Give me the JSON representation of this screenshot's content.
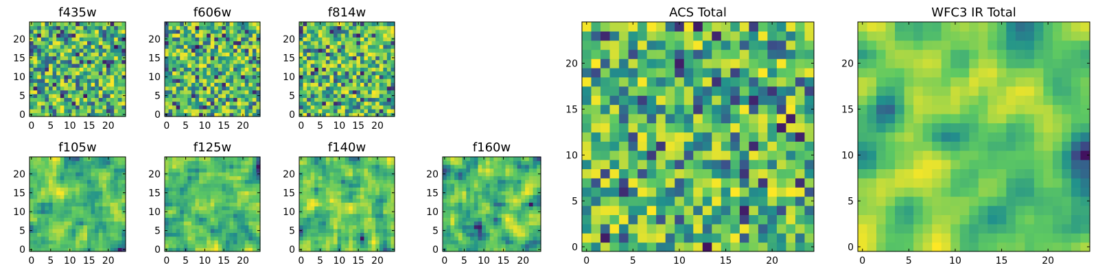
{
  "figure": {
    "panels_description": "Grid of heatmap panels (HST filter images, 25x25 pixel cutouts)"
  },
  "colormap": {
    "name": "viridis",
    "stops": [
      "#440154",
      "#3b528b",
      "#21918c",
      "#5ec962",
      "#fde725"
    ]
  },
  "chart_data": [
    {
      "type": "heatmap",
      "title": "f435w",
      "grid_size": 25,
      "xlim": [
        0,
        24
      ],
      "ylim": [
        0,
        24
      ],
      "xticks": [
        0,
        5,
        10,
        15,
        20
      ],
      "yticks": [
        0,
        5,
        10,
        15,
        20
      ],
      "texture": "noise",
      "smooth": 0,
      "seed": 11
    },
    {
      "type": "heatmap",
      "title": "f606w",
      "grid_size": 25,
      "xlim": [
        0,
        24
      ],
      "ylim": [
        0,
        24
      ],
      "xticks": [
        0,
        5,
        10,
        15,
        20
      ],
      "yticks": [
        0,
        5,
        10,
        15,
        20
      ],
      "texture": "noise",
      "smooth": 0,
      "seed": 23
    },
    {
      "type": "heatmap",
      "title": "f814w",
      "grid_size": 25,
      "xlim": [
        0,
        24
      ],
      "ylim": [
        0,
        24
      ],
      "xticks": [
        0,
        5,
        10,
        15,
        20
      ],
      "yticks": [
        0,
        5,
        10,
        15,
        20
      ],
      "texture": "noise",
      "smooth": 0,
      "seed": 37
    },
    {
      "type": "heatmap",
      "title": "f105w",
      "grid_size": 25,
      "xlim": [
        0,
        24
      ],
      "ylim": [
        0,
        24
      ],
      "xticks": [
        0,
        5,
        10,
        15,
        20
      ],
      "yticks": [
        0,
        5,
        10,
        15,
        20
      ],
      "texture": "smooth",
      "smooth": 1,
      "seed": 41
    },
    {
      "type": "heatmap",
      "title": "f125w",
      "grid_size": 25,
      "xlim": [
        0,
        24
      ],
      "ylim": [
        0,
        24
      ],
      "xticks": [
        0,
        5,
        10,
        15,
        20
      ],
      "yticks": [
        0,
        5,
        10,
        15,
        20
      ],
      "texture": "smooth",
      "smooth": 1,
      "seed": 53
    },
    {
      "type": "heatmap",
      "title": "f140w",
      "grid_size": 25,
      "xlim": [
        0,
        24
      ],
      "ylim": [
        0,
        24
      ],
      "xticks": [
        0,
        5,
        10,
        15,
        20
      ],
      "yticks": [
        0,
        5,
        10,
        15,
        20
      ],
      "texture": "smooth",
      "smooth": 1,
      "seed": 67
    },
    {
      "type": "heatmap",
      "title": "f160w",
      "grid_size": 25,
      "xlim": [
        0,
        24
      ],
      "ylim": [
        0,
        24
      ],
      "xticks": [
        0,
        5,
        10,
        15,
        20
      ],
      "yticks": [
        0,
        5,
        10,
        15,
        20
      ],
      "texture": "smooth",
      "smooth": 1,
      "seed": 79
    },
    {
      "type": "heatmap",
      "title": "ACS Total",
      "grid_size": 25,
      "xlim": [
        0,
        24
      ],
      "ylim": [
        0,
        24
      ],
      "xticks": [
        0,
        5,
        10,
        15,
        20
      ],
      "yticks": [
        0,
        5,
        10,
        15,
        20
      ],
      "texture": "noise",
      "smooth": 0,
      "seed": 97
    },
    {
      "type": "heatmap",
      "title": "WFC3 IR Total",
      "grid_size": 25,
      "xlim": [
        0,
        24
      ],
      "ylim": [
        0,
        24
      ],
      "xticks": [
        0,
        5,
        10,
        15,
        20
      ],
      "yticks": [
        0,
        5,
        10,
        15,
        20
      ],
      "texture": "smooth",
      "smooth": 2,
      "seed": 113
    }
  ]
}
